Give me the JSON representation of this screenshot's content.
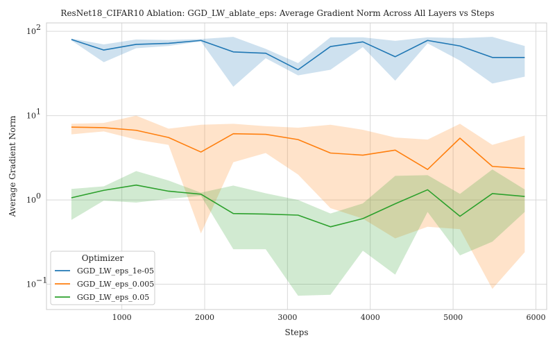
{
  "chart_data": {
    "type": "line",
    "title": "ResNet18_CIFAR10 Ablation: GGD_LW_ablate_eps: Average Gradient Norm Across All Layers vs Steps",
    "xlabel": "Steps",
    "ylabel": "Average Gradient Norm",
    "yscale": "log",
    "xlim": [
      90,
      6130
    ],
    "ylim_log10": [
      -1.3,
      2.1
    ],
    "x_ticks": [
      1000,
      2000,
      3000,
      4000,
      5000,
      6000
    ],
    "x_tick_labels": [
      "1000",
      "2000",
      "3000",
      "4000",
      "5000",
      "6000"
    ],
    "y_ticks": [
      {
        "exp": -1,
        "base": "10",
        "sup": "−1"
      },
      {
        "exp": 0,
        "base": "10",
        "sup": "0"
      },
      {
        "exp": 1,
        "base": "10",
        "sup": "1"
      },
      {
        "exp": 2,
        "base": "10",
        "sup": "2"
      }
    ],
    "grid": true,
    "legend": {
      "title": "Optimizer",
      "placement": "lower-left"
    },
    "x": [
      391,
      782,
      1173,
      1564,
      1955,
      2346,
      2737,
      3128,
      3519,
      3910,
      4301,
      4692,
      5083,
      5474,
      5865
    ],
    "series": [
      {
        "name": "GGD_LW_eps_1e-05",
        "color": "#1f77b4",
        "values": [
          80,
          60,
          70,
          72,
          78,
          57,
          55,
          35,
          66,
          75,
          50,
          78,
          67,
          49,
          49
        ],
        "lower": [
          78,
          43,
          63,
          67,
          76,
          22,
          48,
          30,
          35,
          65,
          26,
          72,
          45,
          24,
          29
        ],
        "upper": [
          82,
          70,
          80,
          79,
          81,
          86,
          62,
          42,
          85,
          85,
          77,
          85,
          83,
          86,
          67
        ]
      },
      {
        "name": "GGD_LW_eps_0.005",
        "color": "#ff7f0e",
        "values": [
          7.3,
          7.2,
          6.7,
          5.5,
          3.7,
          6.1,
          6.0,
          5.2,
          3.6,
          3.4,
          3.9,
          2.3,
          5.4,
          2.5,
          2.35
        ],
        "lower": [
          6.0,
          6.5,
          5.2,
          4.5,
          0.4,
          2.8,
          3.6,
          2.0,
          0.8,
          0.6,
          0.35,
          0.48,
          0.45,
          0.088,
          0.24
        ],
        "upper": [
          8.0,
          8.2,
          10.0,
          7.0,
          7.8,
          8.0,
          7.5,
          7.2,
          7.8,
          6.8,
          5.5,
          5.2,
          8.0,
          4.5,
          5.8
        ]
      },
      {
        "name": "GGD_LW_eps_0.05",
        "color": "#2ca02c",
        "values": [
          1.06,
          1.3,
          1.5,
          1.27,
          1.17,
          0.69,
          0.68,
          0.66,
          0.48,
          0.6,
          0.9,
          1.32,
          0.64,
          1.19,
          1.1
        ],
        "lower": [
          0.58,
          0.98,
          0.93,
          1.03,
          1.12,
          0.26,
          0.26,
          0.073,
          0.075,
          0.25,
          0.13,
          0.72,
          0.22,
          0.32,
          0.72
        ],
        "upper": [
          1.35,
          1.45,
          2.2,
          1.7,
          1.22,
          1.48,
          1.2,
          1.0,
          0.69,
          0.91,
          1.93,
          1.97,
          1.18,
          2.3,
          1.33
        ]
      }
    ]
  }
}
